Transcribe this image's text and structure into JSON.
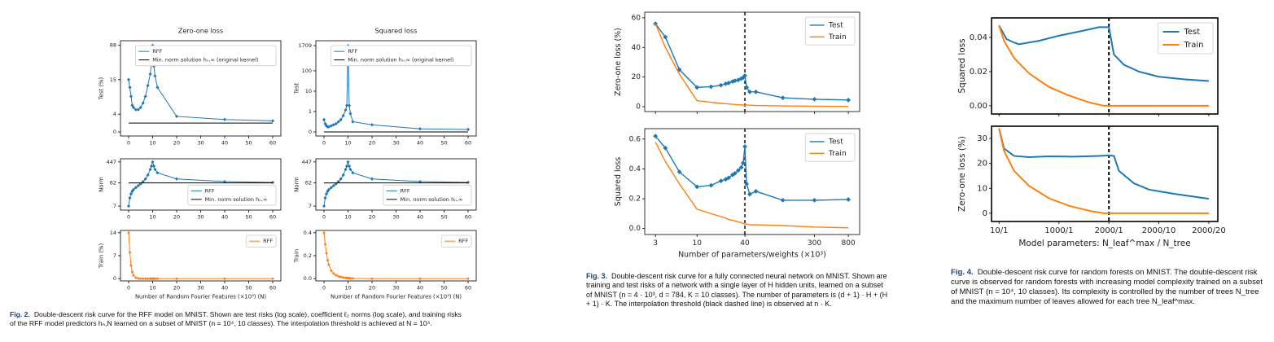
{
  "chart_data": [
    {
      "type": "line",
      "title": "Zero-one loss",
      "ylabel": "Test (%)",
      "yscale": "symlog",
      "linthresh": 10,
      "xlim": [
        -3.4,
        63.4
      ],
      "ylim": [
        -0.9,
        112
      ],
      "xticks": [
        0,
        10,
        20,
        30,
        40,
        50,
        60
      ],
      "yticks": [
        0,
        4,
        15,
        88
      ],
      "legend": "upper right",
      "series": [
        {
          "name": "RFF",
          "color": "#1f77b4",
          "marker": "diamond",
          "x": [
            0,
            0.5,
            1,
            1.5,
            2,
            3,
            4,
            5,
            6,
            7,
            8,
            9,
            9.5,
            10,
            10.5,
            11,
            12,
            20,
            40,
            60
          ],
          "values": [
            15,
            10,
            8,
            6,
            5.5,
            5,
            5,
            5.5,
            6.5,
            8,
            11,
            20,
            35,
            88,
            30,
            18,
            10,
            3.5,
            2.8,
            2.5
          ]
        },
        {
          "name": "Min. norm solution hₙ,∞ (original kernel)",
          "color": "#000000",
          "x": [
            0,
            60
          ],
          "values": [
            2,
            2
          ]
        }
      ]
    },
    {
      "type": "line",
      "title": "Squared loss",
      "ylabel": "Test",
      "yscale": "symlog",
      "linthresh": 1,
      "xlim": [
        -3.4,
        63.4
      ],
      "ylim": [
        -0.2,
        3000
      ],
      "xticks": [
        0,
        10,
        20,
        30,
        40,
        50,
        60
      ],
      "yticks": [
        0,
        1,
        10,
        100,
        1709
      ],
      "legend": "upper right",
      "series": [
        {
          "name": "RFF",
          "color": "#1f77b4",
          "marker": "diamond",
          "x": [
            0,
            0.5,
            1,
            1.5,
            2,
            3,
            4,
            5,
            6,
            7,
            8,
            9,
            9.5,
            10,
            10.5,
            11,
            12,
            20,
            40,
            60
          ],
          "values": [
            0.6,
            0.4,
            0.3,
            0.25,
            0.25,
            0.3,
            0.35,
            0.4,
            0.5,
            0.6,
            0.8,
            1.2,
            2,
            1709,
            2,
            0.9,
            0.5,
            0.35,
            0.15,
            0.12
          ]
        },
        {
          "name": "Min. norm solution hₙ,∞ (original kernel)",
          "color": "#000000",
          "x": [
            0,
            60
          ],
          "values": [
            0,
            0
          ]
        }
      ]
    },
    {
      "type": "line",
      "ylabel": "Norm",
      "yscale": "log",
      "xlim": [
        -3.4,
        63.4
      ],
      "ylim": [
        4.8,
        600
      ],
      "xticks": [
        0,
        10,
        20,
        30,
        40,
        50,
        60
      ],
      "yticks": [
        7,
        62,
        447
      ],
      "legend": "lower right",
      "series": [
        {
          "name": "RFF",
          "color": "#1f77b4",
          "marker": "diamond",
          "x": [
            0,
            0.5,
            1,
            1.5,
            2,
            3,
            4,
            5,
            6,
            7,
            8,
            9,
            9.5,
            10,
            10.5,
            11,
            12,
            20,
            40,
            60
          ],
          "values": [
            7,
            15,
            22,
            28,
            33,
            40,
            48,
            57,
            70,
            90,
            130,
            220,
            300,
            447,
            300,
            220,
            160,
            90,
            70,
            65
          ]
        },
        {
          "name": "Min. norm solution hₙ,∞",
          "color": "#000000",
          "x": [
            0,
            60
          ],
          "values": [
            62,
            62
          ]
        }
      ]
    },
    {
      "type": "line",
      "ylabel": "Norm",
      "yscale": "log",
      "xlim": [
        -3.4,
        63.4
      ],
      "ylim": [
        4.8,
        600
      ],
      "xticks": [
        0,
        10,
        20,
        30,
        40,
        50,
        60
      ],
      "yticks": [
        7,
        62,
        447
      ],
      "legend": "lower right",
      "series": [
        {
          "name": "RFF",
          "color": "#1f77b4",
          "marker": "diamond",
          "x": [
            0,
            0.5,
            1,
            1.5,
            2,
            3,
            4,
            5,
            6,
            7,
            8,
            9,
            9.5,
            10,
            10.5,
            11,
            12,
            20,
            40,
            60
          ],
          "values": [
            7,
            15,
            22,
            28,
            33,
            40,
            48,
            57,
            70,
            90,
            130,
            220,
            300,
            447,
            300,
            220,
            160,
            90,
            70,
            65
          ]
        },
        {
          "name": "Min. norm solution hₙ,∞",
          "color": "#000000",
          "x": [
            0,
            60
          ],
          "values": [
            62,
            62
          ]
        }
      ]
    },
    {
      "type": "line",
      "ylabel": "Train (%)",
      "xlabel": "Number of Random Fourier Features (×10³) (N)",
      "xlim": [
        -3.4,
        63.4
      ],
      "ylim": [
        -0.7,
        14.7
      ],
      "xticks": [
        0,
        10,
        20,
        30,
        40,
        50,
        60
      ],
      "yticks": [
        0,
        7,
        14
      ],
      "legend": "upper right",
      "series": [
        {
          "name": "RFF",
          "color": "#ff7f0e",
          "marker": "dot",
          "x": [
            0,
            0.5,
            1,
            1.5,
            2,
            3,
            4,
            5,
            6,
            7,
            8,
            9,
            9.5,
            10,
            10.5,
            11,
            12,
            20,
            40,
            60
          ],
          "values": [
            14,
            8,
            4,
            2,
            1,
            0.3,
            0.05,
            0,
            0,
            0,
            0,
            0,
            0,
            0,
            0,
            0,
            0,
            0,
            0,
            0
          ]
        }
      ]
    },
    {
      "type": "line",
      "ylabel": "Train",
      "xlabel": "Number of Random Fourier Features (×10³) (N)",
      "xlim": [
        -3.4,
        63.4
      ],
      "ylim": [
        -0.02,
        0.42
      ],
      "xticks": [
        0,
        10,
        20,
        30,
        40,
        50,
        60
      ],
      "yticks": [
        {
          "value": 0,
          "label": "0.0"
        },
        {
          "value": 0.2,
          "label": "0.2"
        },
        {
          "value": 0.4,
          "label": "0.4"
        }
      ],
      "legend": "upper right",
      "series": [
        {
          "name": "RFF",
          "color": "#ff7f0e",
          "marker": "dot",
          "x": [
            0,
            0.5,
            1,
            1.5,
            2,
            3,
            4,
            5,
            6,
            7,
            8,
            9,
            9.5,
            10,
            10.5,
            11,
            12,
            20,
            40,
            60
          ],
          "values": [
            0.4,
            0.3,
            0.22,
            0.16,
            0.12,
            0.07,
            0.045,
            0.03,
            0.02,
            0.015,
            0.01,
            0.007,
            0.006,
            0.005,
            0.004,
            0.003,
            0.002,
            0,
            0,
            0
          ]
        }
      ]
    },
    {
      "type": "line",
      "ylabel": "Zero-one loss (%)",
      "xscale": "log",
      "xlim": [
        2.2,
        1110
      ],
      "ylim": [
        -3.3,
        63.8
      ],
      "xticks": [
        3,
        10,
        40,
        300,
        800
      ],
      "yticks": [
        0,
        20,
        40,
        60
      ],
      "vline": 40,
      "legend": "upper right",
      "series": [
        {
          "name": "Test",
          "color": "#1f77b4",
          "marker": "diamond",
          "x": [
            3,
            4,
            6,
            10,
            15,
            20,
            23,
            25,
            28,
            30,
            33,
            36,
            38,
            40,
            42,
            46,
            55,
            120,
            300,
            800
          ],
          "values": [
            56,
            47,
            25,
            13,
            13.5,
            14.5,
            15.5,
            16,
            17,
            17.5,
            18,
            19,
            19.5,
            21,
            13,
            10,
            10,
            6,
            5,
            4.5
          ]
        },
        {
          "name": "Train",
          "color": "#ff7f0e",
          "x": [
            3,
            4,
            6,
            10,
            15,
            20,
            23,
            25,
            28,
            30,
            33,
            36,
            38,
            40,
            42,
            46,
            55,
            120,
            300,
            800
          ],
          "values": [
            56,
            40,
            22,
            4,
            3,
            2.2,
            2,
            1.8,
            1.6,
            1.5,
            1.3,
            1.2,
            1.1,
            1,
            1.2,
            1,
            0.8,
            0.5,
            0.3,
            0.2
          ]
        }
      ]
    },
    {
      "type": "line",
      "ylabel": "Squared loss",
      "xlabel": "Number of parameters/weights (×10³)",
      "xscale": "log",
      "xlim": [
        2.2,
        1110
      ],
      "ylim": [
        -0.04,
        0.67
      ],
      "xticks": [
        3,
        10,
        40,
        300,
        800
      ],
      "yticks": [
        {
          "value": 0,
          "label": "0.0"
        },
        {
          "value": 0.2,
          "label": "0.2"
        },
        {
          "value": 0.4,
          "label": "0.4"
        },
        {
          "value": 0.6,
          "label": "0.6"
        }
      ],
      "vline": 40,
      "legend": "upper right",
      "series": [
        {
          "name": "Test",
          "color": "#1f77b4",
          "marker": "diamond",
          "x": [
            3,
            4,
            6,
            10,
            15,
            20,
            23,
            25,
            28,
            30,
            33,
            36,
            38,
            40,
            42,
            46,
            55,
            120,
            300,
            800
          ],
          "values": [
            0.62,
            0.54,
            0.38,
            0.28,
            0.29,
            0.32,
            0.33,
            0.34,
            0.36,
            0.37,
            0.39,
            0.41,
            0.44,
            0.55,
            0.3,
            0.23,
            0.25,
            0.19,
            0.19,
            0.195
          ]
        },
        {
          "name": "Train",
          "color": "#ff7f0e",
          "x": [
            3,
            4,
            6,
            10,
            15,
            20,
            23,
            25,
            28,
            30,
            33,
            36,
            38,
            40,
            42,
            46,
            55,
            120,
            300,
            800
          ],
          "values": [
            0.58,
            0.45,
            0.3,
            0.13,
            0.1,
            0.08,
            0.07,
            0.06,
            0.055,
            0.05,
            0.045,
            0.04,
            0.035,
            0.03,
            0.03,
            0.025,
            0.025,
            0.02,
            0.01,
            0.005
          ]
        }
      ]
    },
    {
      "type": "line",
      "ylabel": "Squared loss",
      "xlim": [
        -0.15,
        4.38
      ],
      "ylim": [
        -0.0048,
        0.0514
      ],
      "xticks": [
        {
          "value": 0,
          "label": "10/1"
        },
        {
          "value": 1.2,
          "label": "1000/1"
        },
        {
          "value": 2.2,
          "label": "2000/1"
        },
        {
          "value": 3.2,
          "label": "2000/10"
        },
        {
          "value": 4.2,
          "label": "2000/20"
        }
      ],
      "yticks": [
        {
          "value": 0,
          "label": "0.00"
        },
        {
          "value": 0.02,
          "label": "0.02"
        },
        {
          "value": 0.04,
          "label": "0.04"
        }
      ],
      "vline": 2.2,
      "legend": "upper right",
      "series": [
        {
          "name": "Test",
          "color": "#1f77b4",
          "x": [
            0,
            0.15,
            0.3,
            0.4,
            0.8,
            1.2,
            1.7,
            2.0,
            2.2,
            2.3,
            2.5,
            2.8,
            3.2,
            3.7,
            4.2
          ],
          "values": [
            0.047,
            0.039,
            0.037,
            0.036,
            0.038,
            0.041,
            0.044,
            0.046,
            0.046,
            0.03,
            0.024,
            0.02,
            0.017,
            0.0155,
            0.0145
          ]
        },
        {
          "name": "Train",
          "color": "#ff7f0e",
          "x": [
            0,
            0.1,
            0.3,
            0.6,
            1.0,
            1.4,
            1.8,
            2.1,
            2.2,
            4.2
          ],
          "values": [
            0.047,
            0.038,
            0.028,
            0.019,
            0.011,
            0.006,
            0.002,
            0,
            0,
            0
          ]
        }
      ]
    },
    {
      "type": "line",
      "ylabel": "Zero-one loss (%)",
      "xlabel": "Model parameters: N_leaf^max / N_tree",
      "xlim": [
        -0.15,
        4.38
      ],
      "ylim": [
        -3.3,
        34.9
      ],
      "xticks": [
        {
          "value": 0,
          "label": "10/1"
        },
        {
          "value": 1.2,
          "label": "1000/1"
        },
        {
          "value": 2.2,
          "label": "2000/1"
        },
        {
          "value": 3.2,
          "label": "2000/10"
        },
        {
          "value": 4.2,
          "label": "2000/20"
        }
      ],
      "yticks": [
        0,
        10,
        20,
        30
      ],
      "vline": 2.2,
      "series": [
        {
          "name": "Test",
          "color": "#1f77b4",
          "x": [
            0,
            0.1,
            0.3,
            0.6,
            1.0,
            1.5,
            2.0,
            2.2,
            2.3,
            2.4,
            2.7,
            3.0,
            3.5,
            4.2
          ],
          "values": [
            34,
            26,
            23,
            22.5,
            22.8,
            22.7,
            23,
            23.2,
            23,
            17,
            12,
            9.5,
            7.8,
            5.8
          ]
        },
        {
          "name": "Train",
          "color": "#ff7f0e",
          "x": [
            0,
            0.1,
            0.3,
            0.6,
            1.0,
            1.4,
            1.8,
            2.1,
            4.2
          ],
          "values": [
            34,
            25,
            17,
            11,
            6,
            3,
            1,
            0,
            0
          ]
        }
      ]
    }
  ],
  "captions": [
    {
      "label": "Fig. 2.",
      "text": "Double-descent risk curve for the RFF model on MNIST. Shown are test risks (log scale), coefficient ℓ₂ norms (log scale), and training risks of the RFF model predictors hₙ,N learned on a subset of MNIST (n = 10⁴, 10 classes). The interpolation threshold is achieved at N = 10⁴."
    },
    {
      "label": "Fig. 3.",
      "text": "Double-descent risk curve for a fully connected neural network on MNIST. Shown are training and test risks of a network with a single layer of H hidden units, learned on a subset of MNIST (n = 4 · 10³, d = 784, K = 10 classes). The number of parameters is (d + 1) · H + (H + 1) · K. The interpolation threshold (black dashed line) is observed at n · K."
    },
    {
      "label": "Fig. 4.",
      "text": "Double-descent risk curve for random forests on MNIST. The double-descent risk curve is observed for random forests with increasing model complexity trained on a subset of MNIST (n = 10⁴, 10 classes). Its complexity is controlled by the number of trees N_tree and the maximum number of leaves allowed for each tree N_leaf^max."
    }
  ]
}
